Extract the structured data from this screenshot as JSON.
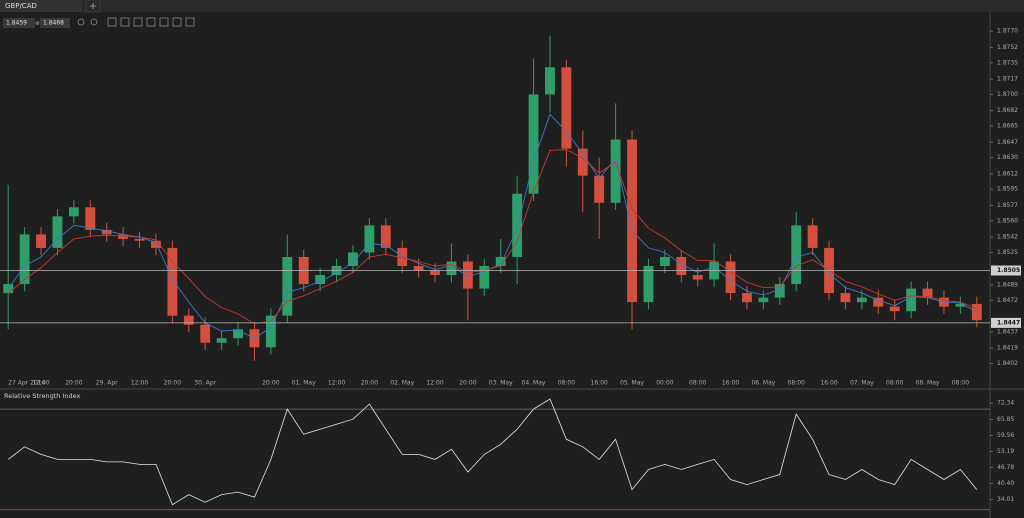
{
  "tab": "GBP/CAD",
  "bid": 1.8459,
  "ask": 1.8468,
  "chart_data": [
    {
      "type": "candlestick",
      "categories": [
        "27 Apr 2014",
        null,
        "12:00",
        null,
        "20:00",
        null,
        "29. Apr",
        null,
        "12:00",
        null,
        "20:00",
        null,
        "30. Apr",
        null,
        null,
        null,
        "20:00",
        null,
        "01. May",
        null,
        "12:00",
        null,
        "20:00",
        null,
        "02. May",
        null,
        "12:00",
        null,
        "20:00",
        null,
        "03. May",
        null,
        "04. May",
        null,
        "08:00",
        null,
        "16:00",
        null,
        "05. May",
        null,
        "00:00",
        null,
        "08:00",
        null,
        "16:00",
        null,
        "06. May",
        null,
        "08:00",
        null,
        "16:00",
        null,
        "07. May",
        null,
        "08:00",
        null,
        "08. May",
        null,
        "08:00",
        null
      ],
      "open": [
        1.848,
        1.849,
        1.8545,
        1.853,
        1.8565,
        1.8575,
        1.855,
        1.8545,
        1.854,
        1.8538,
        1.853,
        1.8455,
        1.8445,
        1.8425,
        1.843,
        1.844,
        1.842,
        1.8455,
        1.852,
        1.849,
        1.85,
        1.851,
        1.8525,
        1.8555,
        1.853,
        1.851,
        1.8505,
        1.85,
        1.8515,
        1.8485,
        1.851,
        1.852,
        1.859,
        1.87,
        1.873,
        1.864,
        1.861,
        1.858,
        1.865,
        1.847,
        1.851,
        1.852,
        1.85,
        1.8495,
        1.8515,
        1.848,
        1.847,
        1.8475,
        1.849,
        1.8555,
        1.853,
        1.848,
        1.847,
        1.8475,
        1.8465,
        1.846,
        1.8485,
        1.8475,
        1.8465,
        1.8468
      ],
      "high": [
        1.86,
        1.8553,
        1.8553,
        1.8573,
        1.8583,
        1.8583,
        1.8558,
        1.8553,
        1.8548,
        1.8546,
        1.8538,
        1.8463,
        1.8453,
        1.8438,
        1.8448,
        1.8448,
        1.8463,
        1.8545,
        1.8528,
        1.8508,
        1.8518,
        1.8533,
        1.8563,
        1.8563,
        1.8538,
        1.8518,
        1.8513,
        1.8535,
        1.8523,
        1.8518,
        1.854,
        1.861,
        1.874,
        1.8765,
        1.8738,
        1.866,
        1.863,
        1.869,
        1.866,
        1.8518,
        1.8528,
        1.8528,
        1.8508,
        1.8535,
        1.8523,
        1.8488,
        1.8483,
        1.8498,
        1.857,
        1.8563,
        1.8538,
        1.8488,
        1.8483,
        1.8483,
        1.8473,
        1.8493,
        1.8493,
        1.8483,
        1.8476,
        1.8476
      ],
      "low": [
        1.844,
        1.8482,
        1.8522,
        1.8522,
        1.8557,
        1.8542,
        1.8537,
        1.8532,
        1.853,
        1.8522,
        1.8447,
        1.8437,
        1.8417,
        1.8417,
        1.8422,
        1.8405,
        1.8412,
        1.8447,
        1.8482,
        1.8482,
        1.8492,
        1.8502,
        1.8517,
        1.8522,
        1.8502,
        1.8497,
        1.8492,
        1.8492,
        1.845,
        1.8477,
        1.8502,
        1.849,
        1.8582,
        1.868,
        1.862,
        1.857,
        1.854,
        1.8572,
        1.844,
        1.8462,
        1.8502,
        1.8492,
        1.8487,
        1.8487,
        1.8472,
        1.8462,
        1.8462,
        1.8467,
        1.8482,
        1.8522,
        1.8472,
        1.8462,
        1.8462,
        1.8457,
        1.845,
        1.8452,
        1.8467,
        1.8457,
        1.8457,
        1.8442
      ],
      "close": [
        1.849,
        1.8545,
        1.853,
        1.8565,
        1.8575,
        1.855,
        1.8545,
        1.854,
        1.8538,
        1.853,
        1.8455,
        1.8445,
        1.8425,
        1.843,
        1.844,
        1.842,
        1.8455,
        1.852,
        1.849,
        1.85,
        1.851,
        1.8525,
        1.8555,
        1.853,
        1.851,
        1.8505,
        1.85,
        1.8515,
        1.8485,
        1.851,
        1.852,
        1.859,
        1.87,
        1.873,
        1.864,
        1.861,
        1.858,
        1.865,
        1.847,
        1.851,
        1.852,
        1.85,
        1.8495,
        1.8515,
        1.848,
        1.847,
        1.8475,
        1.849,
        1.8555,
        1.853,
        1.848,
        1.847,
        1.8475,
        1.8465,
        1.846,
        1.8485,
        1.8475,
        1.8465,
        1.8468,
        1.845
      ],
      "up_color": "#2e9e6a",
      "down_color": "#d4503e",
      "overlays": [
        {
          "color": "#3d78c9",
          "values": [
            1.8485,
            1.851,
            1.852,
            1.854,
            1.8555,
            1.8552,
            1.8549,
            1.8545,
            1.8542,
            1.8536,
            1.8495,
            1.847,
            1.8447,
            1.8438,
            1.8439,
            1.843,
            1.8442,
            1.8481,
            1.8486,
            1.8493,
            1.8502,
            1.8514,
            1.8535,
            1.8533,
            1.8521,
            1.8513,
            1.8506,
            1.8511,
            1.8498,
            1.8504,
            1.8512,
            1.8551,
            1.8626,
            1.8678,
            1.8659,
            1.8634,
            1.8607,
            1.8629,
            1.8549,
            1.853,
            1.8525,
            1.8512,
            1.8503,
            1.8509,
            1.8494,
            1.8482,
            1.8478,
            1.8484,
            1.852,
            1.8525,
            1.8502,
            1.8486,
            1.848,
            1.8472,
            1.8466,
            1.8476,
            1.8475,
            1.847,
            1.8469,
            1.8459
          ]
        },
        {
          "color": "#c8382e",
          "values": [
            1.848,
            1.8495,
            1.8508,
            1.8525,
            1.854,
            1.8543,
            1.8544,
            1.8543,
            1.8542,
            1.8539,
            1.8515,
            1.8496,
            1.8476,
            1.8464,
            1.8457,
            1.8446,
            1.8449,
            1.8471,
            1.8477,
            1.8485,
            1.8493,
            1.8503,
            1.852,
            1.8523,
            1.8519,
            1.8515,
            1.851,
            1.8512,
            1.8503,
            1.8505,
            1.851,
            1.8537,
            1.8592,
            1.8638,
            1.8639,
            1.8629,
            1.8613,
            1.8625,
            1.8573,
            1.8552,
            1.8541,
            1.8527,
            1.8516,
            1.8516,
            1.8504,
            1.8492,
            1.8486,
            1.8487,
            1.851,
            1.8517,
            1.8505,
            1.8493,
            1.8487,
            1.8479,
            1.8472,
            1.8477,
            1.8476,
            1.8472,
            1.847,
            1.8463
          ]
        }
      ],
      "levels": [
        1.8505,
        1.8447
      ],
      "level_color": "#b8b8b8",
      "ylim": [
        1.8386,
        1.8789
      ],
      "yticks": [
        {
          "value": 1.877,
          "label": "1.8770"
        },
        1.8752,
        1.8735,
        1.8717,
        {
          "value": 1.87,
          "label": "1.8700"
        },
        1.8682,
        1.8665,
        1.8647,
        {
          "value": 1.863,
          "label": "1.8630"
        },
        1.8612,
        1.8595,
        1.8577,
        {
          "value": 1.856,
          "label": "1.8560"
        },
        1.8542,
        1.8525,
        1.8489,
        1.8472,
        1.8437,
        1.8419,
        1.8402
      ]
    },
    {
      "type": "line",
      "title": "Relative Strength Index",
      "color": "#e6e6e6",
      "values": [
        50,
        55,
        52,
        50,
        50,
        50,
        49,
        49,
        48,
        48,
        32,
        36,
        33,
        36,
        37,
        35,
        50,
        70,
        60,
        62,
        64,
        66,
        72,
        62,
        52,
        52,
        50,
        54,
        45,
        52,
        56,
        62,
        70,
        74,
        58,
        55,
        50,
        58,
        38,
        46,
        48,
        46,
        48,
        50,
        42,
        40,
        42,
        44,
        68,
        58,
        44,
        42,
        46,
        42,
        40,
        50,
        46,
        42,
        46,
        38
      ],
      "levels": [
        70,
        30
      ],
      "level_colors": [
        "#4f8a56",
        "#b4473a"
      ],
      "ylim": [
        27.5,
        76.8
      ],
      "yticks": [
        72.34,
        65.85,
        59.56,
        53.19,
        46.78,
        {
          "value": 40.4,
          "label": "40.40"
        },
        34.01
      ]
    }
  ]
}
